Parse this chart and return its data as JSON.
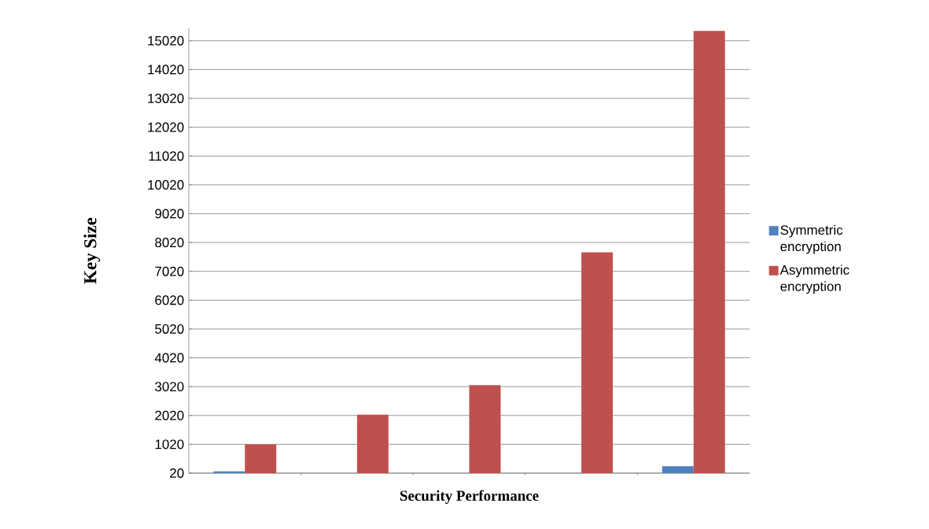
{
  "chart_data": {
    "type": "bar",
    "xlabel": "Security Performance",
    "ylabel": "Key Size",
    "categories": [
      null,
      null,
      null,
      null,
      null
    ],
    "series": [
      {
        "name": "Symmetric encryption",
        "color": "#4f81bd",
        "values": [
          80,
          null,
          null,
          null,
          260
        ]
      },
      {
        "name": "Asymmetric encryption",
        "color": "#c0504d",
        "values": [
          1020,
          2050,
          3070,
          7680,
          15360
        ]
      }
    ],
    "ylim": [
      20,
      15450
    ],
    "yticks": [
      20,
      1020,
      2020,
      3020,
      4020,
      5020,
      6020,
      7020,
      8020,
      9020,
      10020,
      11020,
      12020,
      13020,
      14020,
      15020
    ],
    "grid": "y",
    "legend": "right"
  }
}
